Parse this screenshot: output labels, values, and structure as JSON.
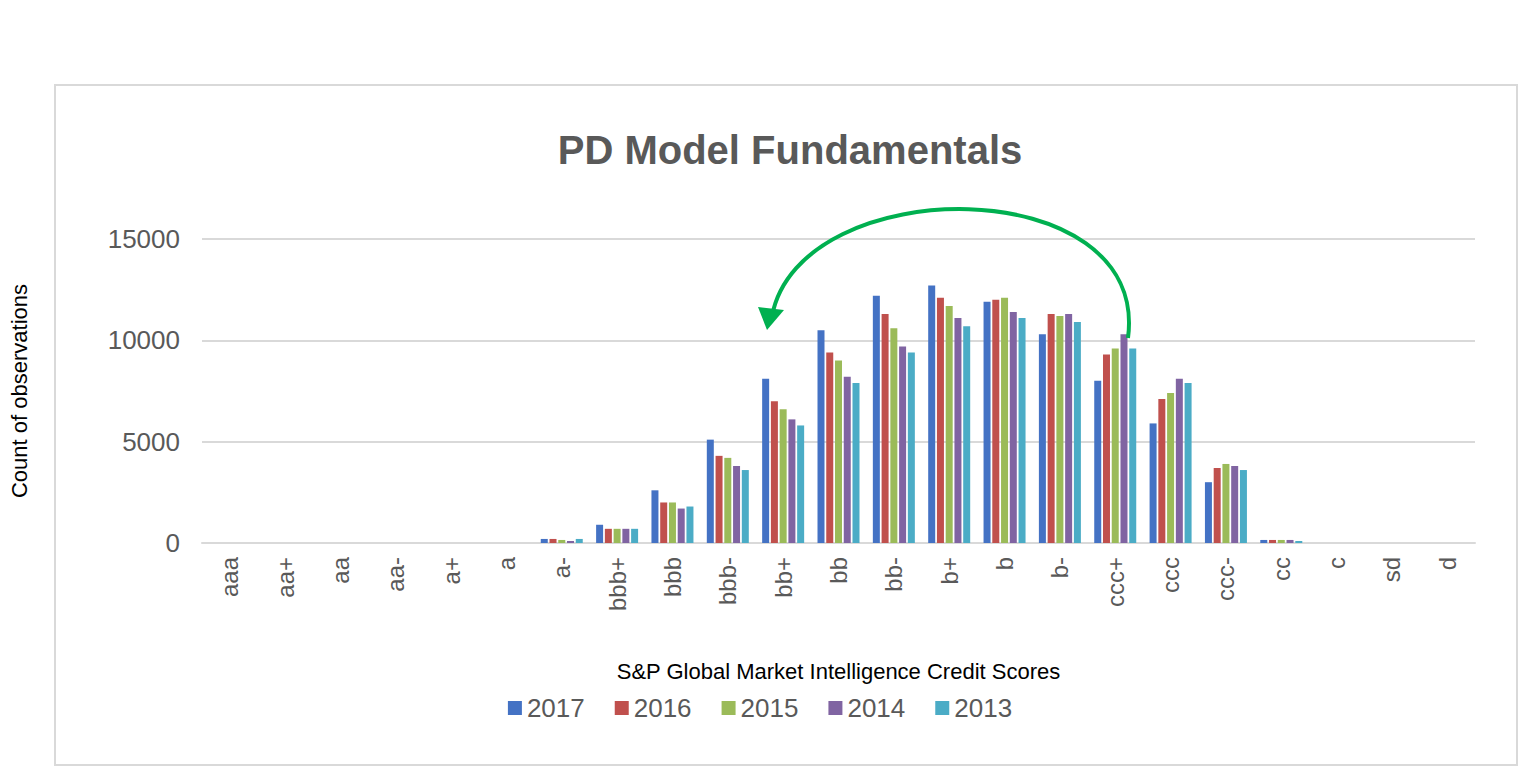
{
  "chart_data": {
    "type": "bar",
    "title": "PD Model Fundamentals",
    "x_label": "S&P Global Market Intelligence Credit Scores",
    "y_label": "Count of observations",
    "categories": [
      "aaa",
      "aa+",
      "aa",
      "aa-",
      "a+",
      "a",
      "a-",
      "bbb+",
      "bbb",
      "bbb-",
      "bb+",
      "bb",
      "bb-",
      "b+",
      "b",
      "b-",
      "ccc+",
      "ccc",
      "ccc-",
      "cc",
      "c",
      "sd",
      "d"
    ],
    "series": [
      {
        "name": "2017",
        "color": "#4472c4",
        "values": [
          0,
          0,
          0,
          0,
          0,
          0,
          200,
          900,
          2600,
          5100,
          8100,
          10500,
          12200,
          12700,
          11900,
          10300,
          8000,
          5900,
          3000,
          150,
          0,
          0,
          0
        ]
      },
      {
        "name": "2016",
        "color": "#c0504d",
        "values": [
          0,
          0,
          0,
          0,
          0,
          0,
          200,
          700,
          2000,
          4300,
          7000,
          9400,
          11300,
          12100,
          12000,
          11300,
          9300,
          7100,
          3700,
          150,
          0,
          0,
          0
        ]
      },
      {
        "name": "2015",
        "color": "#9bbb59",
        "values": [
          0,
          0,
          0,
          0,
          0,
          0,
          150,
          700,
          2000,
          4200,
          6600,
          9000,
          10600,
          11700,
          12100,
          11200,
          9600,
          7400,
          3900,
          150,
          0,
          0,
          0
        ]
      },
      {
        "name": "2014",
        "color": "#8064a2",
        "values": [
          0,
          0,
          0,
          0,
          0,
          0,
          100,
          700,
          1700,
          3800,
          6100,
          8200,
          9700,
          11100,
          11400,
          11300,
          10300,
          8100,
          3800,
          150,
          0,
          0,
          0
        ]
      },
      {
        "name": "2013",
        "color": "#4bacc6",
        "values": [
          0,
          0,
          0,
          0,
          0,
          0,
          200,
          700,
          1800,
          3600,
          5800,
          7900,
          9400,
          10700,
          11100,
          10900,
          9600,
          7900,
          3600,
          100,
          0,
          0,
          0
        ]
      }
    ],
    "ylim": [
      0,
      15000
    ],
    "yticks": [
      0,
      5000,
      10000,
      15000
    ],
    "grid": true,
    "legend": "bottom"
  }
}
